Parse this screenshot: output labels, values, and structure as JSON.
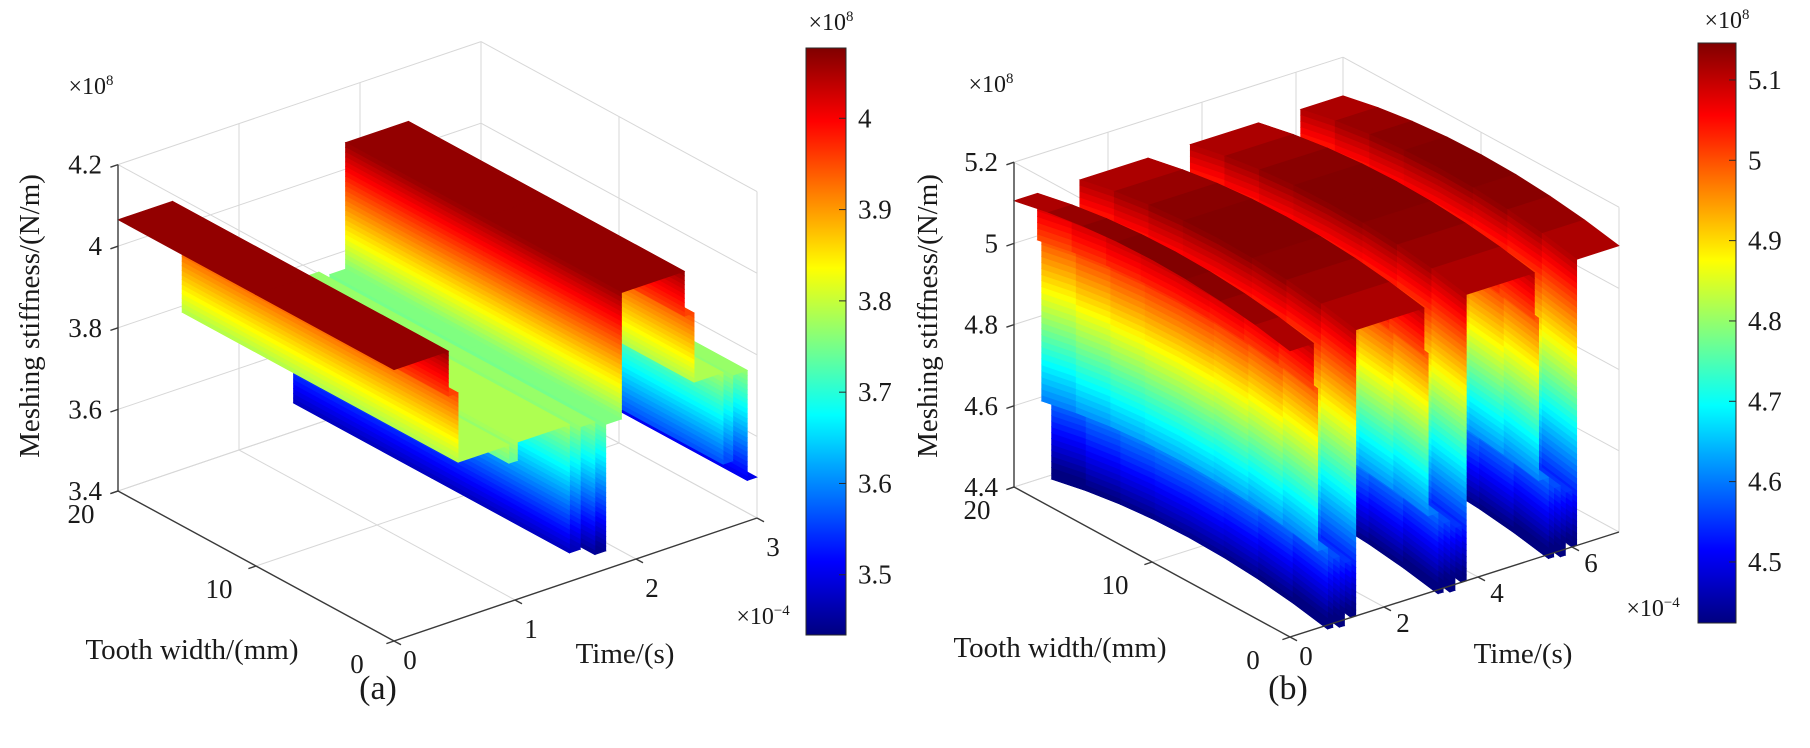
{
  "page": {
    "background": "#ffffff",
    "figure_type": "dual 3D surface plot with colorbars"
  },
  "charts": [
    {
      "id": "a",
      "caption": "(a)",
      "zlabel": "Meshing stiffness/(N/m)",
      "xlabel": "Time/(s)",
      "ylabel": "Tooth width/(mm)",
      "z_exponent": {
        "base": "×10",
        "power": "8"
      },
      "x_exponent": {
        "base": "×10",
        "power": "−4"
      },
      "cb_exponent": {
        "base": "×10",
        "power": "8"
      },
      "chart_data": {
        "type": "surface",
        "colormap": "jet",
        "x": {
          "label": "Time/(s)",
          "unit_scale": "1e-4 s",
          "range": [
            0,
            3
          ],
          "tick_values": [
            0,
            1,
            2,
            3
          ],
          "tick_labels": [
            "0",
            "1",
            "2",
            "3"
          ]
        },
        "y": {
          "label": "Tooth width/(mm)",
          "unit_scale": "mm",
          "range": [
            0,
            20
          ],
          "tick_values": [
            0,
            10,
            20
          ],
          "tick_labels": [
            "0",
            "10",
            "20"
          ]
        },
        "z": {
          "label": "Meshing stiffness/(N/m)",
          "unit_scale": "1e8 N/m",
          "range": [
            3.4,
            4.2
          ],
          "tick_values": [
            3.4,
            3.6,
            3.8,
            4.0,
            4.2
          ],
          "tick_labels": [
            "3.4",
            "3.6",
            "3.8",
            "4",
            "4.2"
          ]
        },
        "colorbar": {
          "range": [
            3.434,
            4.077
          ],
          "tick_values": [
            3.5,
            3.6,
            3.7,
            3.8,
            3.9,
            4.0
          ],
          "tick_labels": [
            "3.5",
            "3.6",
            "3.7",
            "3.8",
            "3.9",
            "4"
          ]
        },
        "surface_model": {
          "comment_levels_1e8": {
            "double_contact_high": 4.065,
            "step": 3.955,
            "single_contact_mid": 3.785,
            "slot_low": 3.445
          },
          "crown_depth": 0,
          "profile_segments": [
            [
              0.0,
              0.45,
              4.065
            ],
            [
              0.45,
              0.53,
              3.955
            ],
            [
              0.53,
              0.95,
              3.785
            ],
            [
              0.95,
              1.02,
              3.74
            ],
            [
              1.02,
              1.45,
              3.785
            ],
            [
              1.45,
              1.54,
              3.47
            ],
            [
              1.54,
              1.66,
              3.77
            ],
            [
              1.66,
              1.75,
              3.445
            ],
            [
              1.75,
              1.88,
              3.755
            ],
            [
              1.88,
              2.4,
              4.065
            ],
            [
              2.4,
              2.48,
              3.955
            ],
            [
              2.48,
              2.72,
              3.785
            ],
            [
              2.72,
              2.8,
              3.56
            ],
            [
              2.8,
              2.92,
              3.77
            ],
            [
              2.92,
              3.0,
              3.5
            ]
          ]
        }
      }
    },
    {
      "id": "b",
      "caption": "(b)",
      "zlabel": "Meshing stiffness/(N/m)",
      "xlabel": "Time/(s)",
      "ylabel": "Tooth width/(mm)",
      "z_exponent": {
        "base": "×10",
        "power": "8"
      },
      "x_exponent": {
        "base": "×10",
        "power": "−4"
      },
      "cb_exponent": {
        "base": "×10",
        "power": "8"
      },
      "chart_data": {
        "type": "surface",
        "colormap": "jet",
        "x": {
          "label": "Time/(s)",
          "unit_scale": "1e-4 s",
          "range": [
            0,
            7
          ],
          "tick_values": [
            0,
            2,
            4,
            6
          ],
          "tick_labels": [
            "0",
            "2",
            "4",
            "6"
          ]
        },
        "y": {
          "label": "Tooth width/(mm)",
          "unit_scale": "mm",
          "range": [
            0,
            20
          ],
          "tick_values": [
            0,
            10,
            20
          ],
          "tick_labels": [
            "0",
            "10",
            "20"
          ]
        },
        "z": {
          "label": "Meshing stiffness/(N/m)",
          "unit_scale": "1e8 N/m",
          "range": [
            4.4,
            5.2
          ],
          "tick_values": [
            4.4,
            4.6,
            4.8,
            5.0,
            5.2
          ],
          "tick_labels": [
            "4.4",
            "4.6",
            "4.8",
            "5",
            "5.2"
          ]
        },
        "colorbar": {
          "range": [
            4.424,
            5.146
          ],
          "tick_values": [
            4.5,
            4.6,
            4.7,
            4.8,
            4.9,
            5.0,
            5.1
          ],
          "tick_labels": [
            "4.5",
            "4.6",
            "4.7",
            "4.8",
            "4.9",
            "5",
            "5.1"
          ]
        },
        "surface_model": {
          "comment_levels_1e8": {
            "double_contact_high": 5.145,
            "step": 5.03,
            "ledge": 4.63,
            "slot_low": 4.425
          },
          "crown_depth": 0.04,
          "profile_segments": [
            [
              0.0,
              0.5,
              5.145
            ],
            [
              0.5,
              0.59,
              5.03
            ],
            [
              0.59,
              0.8,
              4.63
            ],
            [
              0.8,
              0.91,
              4.43
            ],
            [
              0.91,
              1.05,
              4.6
            ],
            [
              1.05,
              1.16,
              4.425
            ],
            [
              1.16,
              1.3,
              4.58
            ],
            [
              1.3,
              1.4,
              4.44
            ],
            [
              1.4,
              2.85,
              5.145
            ],
            [
              2.85,
              2.94,
              5.03
            ],
            [
              2.94,
              3.15,
              4.63
            ],
            [
              3.15,
              3.26,
              4.43
            ],
            [
              3.26,
              3.4,
              4.6
            ],
            [
              3.4,
              3.51,
              4.425
            ],
            [
              3.51,
              3.65,
              4.58
            ],
            [
              3.65,
              3.75,
              4.44
            ],
            [
              3.75,
              5.2,
              5.145
            ],
            [
              5.2,
              5.29,
              5.03
            ],
            [
              5.29,
              5.5,
              4.63
            ],
            [
              5.5,
              5.61,
              4.43
            ],
            [
              5.61,
              5.75,
              4.6
            ],
            [
              5.75,
              5.86,
              4.425
            ],
            [
              5.86,
              6.0,
              4.58
            ],
            [
              6.0,
              6.1,
              4.44
            ],
            [
              6.1,
              7.0,
              5.145
            ]
          ]
        }
      }
    }
  ]
}
